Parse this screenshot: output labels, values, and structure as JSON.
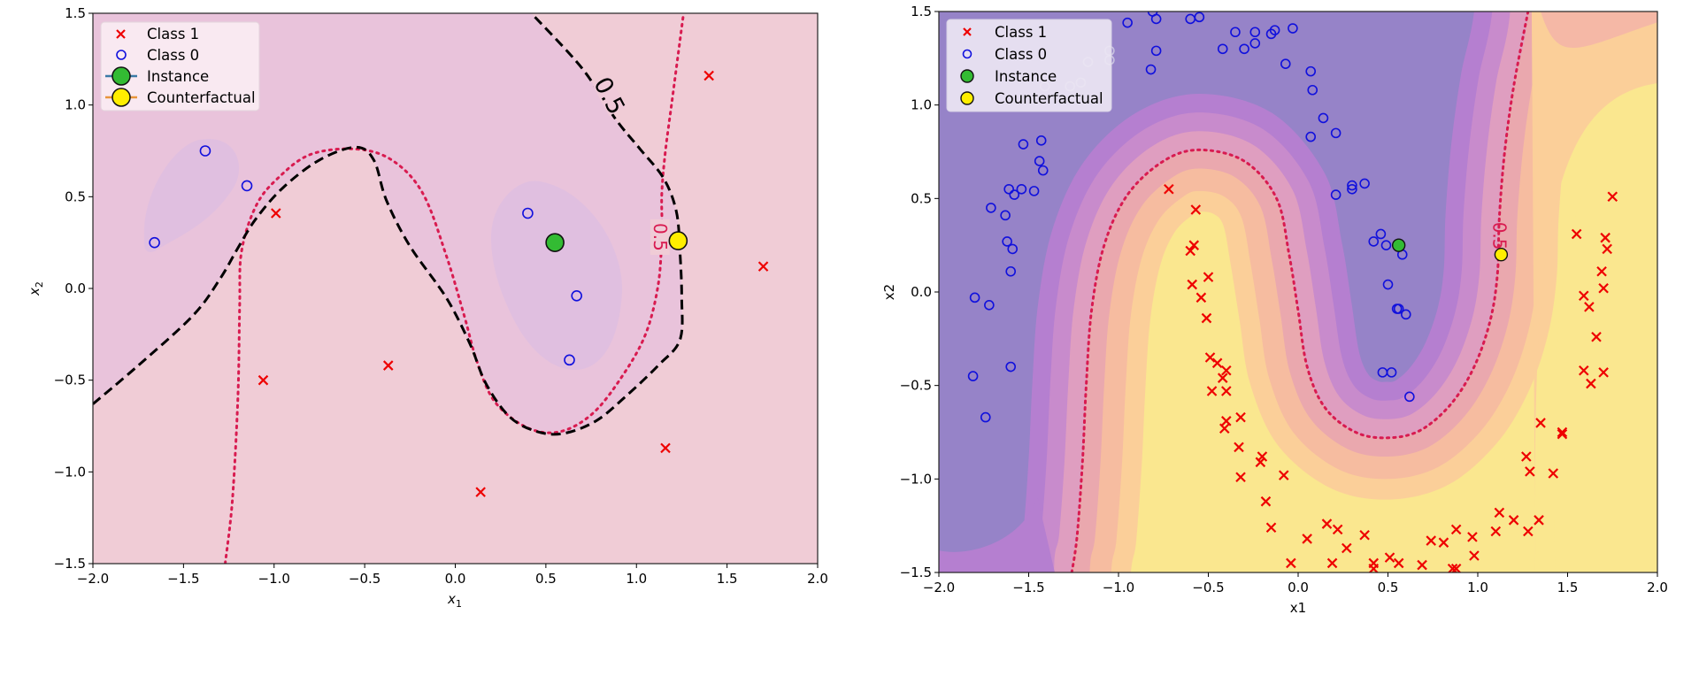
{
  "colors": {
    "class1": "#ee0000",
    "class0": "#1010dd",
    "instance": "#33bb33",
    "counterfactual": "#ffee00",
    "boundary_true": "#d81b50",
    "boundary_model": "#000000"
  },
  "chart_data": [
    {
      "type": "scatter",
      "title": "",
      "xlabel": "x1",
      "ylabel": "x2",
      "xlabel_style": "math-subscript",
      "xlim": [
        -2.0,
        2.0
      ],
      "ylim": [
        -1.5,
        1.5
      ],
      "xticks": [
        "−2.0",
        "−1.5",
        "−1.0",
        "−0.5",
        "0.0",
        "0.5",
        "1.0",
        "1.5",
        "2.0"
      ],
      "yticks": [
        "−1.5",
        "−1.0",
        "−0.5",
        "0.0",
        "0.5",
        "1.0",
        "1.5"
      ],
      "legend_position": "top-left",
      "legend": [
        "Class 1",
        "Class 0",
        "Instance",
        "Counterfactual"
      ],
      "series": [
        {
          "name": "Class 1",
          "marker": "x",
          "points": [
            [
              1.4,
              1.16
            ],
            [
              -0.99,
              0.41
            ],
            [
              1.7,
              0.12
            ],
            [
              -1.06,
              -0.5
            ],
            [
              -0.37,
              -0.42
            ],
            [
              1.16,
              -0.87
            ],
            [
              0.14,
              -1.11
            ]
          ]
        },
        {
          "name": "Class 0",
          "marker": "o",
          "points": [
            [
              -1.38,
              0.75
            ],
            [
              -1.15,
              0.56
            ],
            [
              -1.66,
              0.25
            ],
            [
              0.4,
              0.41
            ],
            [
              0.67,
              -0.04
            ],
            [
              0.63,
              -0.39
            ]
          ]
        },
        {
          "name": "Instance",
          "marker": "big-circle",
          "points": [
            [
              0.55,
              0.25
            ]
          ]
        },
        {
          "name": "Counterfactual",
          "marker": "big-circle",
          "points": [
            [
              1.23,
              0.26
            ]
          ]
        }
      ],
      "contours": [
        {
          "name": "model-boundary",
          "level_label": "0.5",
          "style": "dashed",
          "points": [
            [
              -2.0,
              -0.63
            ],
            [
              -1.75,
              -0.42
            ],
            [
              -1.45,
              -0.15
            ],
            [
              -1.3,
              0.05
            ],
            [
              -1.2,
              0.22
            ],
            [
              -1.1,
              0.38
            ],
            [
              -0.95,
              0.55
            ],
            [
              -0.75,
              0.7
            ],
            [
              -0.55,
              0.77
            ],
            [
              -0.45,
              0.7
            ],
            [
              -0.38,
              0.48
            ],
            [
              -0.25,
              0.23
            ],
            [
              -0.05,
              -0.05
            ],
            [
              0.08,
              -0.3
            ],
            [
              0.17,
              -0.52
            ],
            [
              0.3,
              -0.7
            ],
            [
              0.45,
              -0.78
            ],
            [
              0.6,
              -0.79
            ],
            [
              0.78,
              -0.72
            ],
            [
              0.95,
              -0.58
            ],
            [
              1.12,
              -0.42
            ],
            [
              1.24,
              -0.28
            ],
            [
              1.25,
              -0.05
            ],
            [
              1.24,
              0.2
            ],
            [
              1.22,
              0.42
            ],
            [
              1.15,
              0.6
            ],
            [
              1.02,
              0.76
            ],
            [
              0.88,
              0.93
            ],
            [
              0.7,
              1.2
            ],
            [
              0.42,
              1.5
            ]
          ],
          "label_at": [
            0.85,
            1.05
          ]
        },
        {
          "name": "true-boundary",
          "level_label": "0.5",
          "style": "dotted",
          "points": [
            [
              -1.27,
              -1.5
            ],
            [
              -1.23,
              -1.15
            ],
            [
              -1.2,
              -0.6
            ],
            [
              -1.19,
              -0.1
            ],
            [
              -1.18,
              0.2
            ],
            [
              -1.1,
              0.45
            ],
            [
              -0.98,
              0.6
            ],
            [
              -0.8,
              0.73
            ],
            [
              -0.55,
              0.76
            ],
            [
              -0.35,
              0.7
            ],
            [
              -0.18,
              0.52
            ],
            [
              -0.05,
              0.18
            ],
            [
              0.05,
              -0.15
            ],
            [
              0.12,
              -0.4
            ],
            [
              0.22,
              -0.62
            ],
            [
              0.4,
              -0.76
            ],
            [
              0.58,
              -0.78
            ],
            [
              0.76,
              -0.68
            ],
            [
              0.92,
              -0.48
            ],
            [
              1.05,
              -0.25
            ],
            [
              1.12,
              0.02
            ],
            [
              1.14,
              0.3
            ],
            [
              1.14,
              0.52
            ],
            [
              1.16,
              0.75
            ],
            [
              1.2,
              1.05
            ],
            [
              1.26,
              1.5
            ]
          ],
          "label_at": [
            1.13,
            0.28
          ]
        }
      ]
    },
    {
      "type": "scatter",
      "title": "",
      "xlabel": "x1",
      "ylabel": "x2",
      "xlim": [
        -2.0,
        2.0
      ],
      "ylim": [
        -1.5,
        1.5
      ],
      "xticks": [
        "−2.0",
        "−1.5",
        "−1.0",
        "−0.5",
        "0.0",
        "0.5",
        "1.0",
        "1.5",
        "2.0"
      ],
      "yticks": [
        "−1.5",
        "−1.0",
        "−0.5",
        "0.0",
        "0.5",
        "1.0",
        "1.5"
      ],
      "legend_position": "top-left",
      "legend": [
        "Class 1",
        "Class 0",
        "Instance",
        "Counterfactual"
      ],
      "series": [
        {
          "name": "Class 1",
          "marker": "x",
          "points": [
            [
              -0.72,
              0.55
            ],
            [
              -0.57,
              0.44
            ],
            [
              -0.58,
              0.25
            ],
            [
              -0.6,
              0.22
            ],
            [
              -0.59,
              0.04
            ],
            [
              -0.5,
              0.08
            ],
            [
              -0.54,
              -0.03
            ],
            [
              -0.51,
              -0.14
            ],
            [
              -0.49,
              -0.35
            ],
            [
              -0.45,
              -0.38
            ],
            [
              -0.4,
              -0.42
            ],
            [
              -0.42,
              -0.46
            ],
            [
              -0.48,
              -0.53
            ],
            [
              -0.4,
              -0.53
            ],
            [
              -0.4,
              -0.69
            ],
            [
              -0.41,
              -0.73
            ],
            [
              -0.32,
              -0.67
            ],
            [
              -0.33,
              -0.83
            ],
            [
              -0.2,
              -0.88
            ],
            [
              -0.21,
              -0.91
            ],
            [
              -0.32,
              -0.99
            ],
            [
              -0.08,
              -0.98
            ],
            [
              -0.18,
              -1.12
            ],
            [
              -0.15,
              -1.26
            ],
            [
              -0.04,
              -1.45
            ],
            [
              0.05,
              -1.32
            ],
            [
              0.16,
              -1.24
            ],
            [
              0.22,
              -1.27
            ],
            [
              0.19,
              -1.45
            ],
            [
              0.27,
              -1.37
            ],
            [
              0.37,
              -1.3
            ],
            [
              0.42,
              -1.45
            ],
            [
              0.42,
              -1.48
            ],
            [
              0.51,
              -1.42
            ],
            [
              0.56,
              -1.45
            ],
            [
              0.69,
              -1.46
            ],
            [
              0.74,
              -1.33
            ],
            [
              0.81,
              -1.34
            ],
            [
              0.88,
              -1.27
            ],
            [
              0.86,
              -1.48
            ],
            [
              0.88,
              -1.48
            ],
            [
              0.97,
              -1.31
            ],
            [
              0.98,
              -1.41
            ],
            [
              1.1,
              -1.28
            ],
            [
              1.12,
              -1.18
            ],
            [
              1.2,
              -1.22
            ],
            [
              1.28,
              -1.28
            ],
            [
              1.34,
              -1.22
            ],
            [
              1.27,
              -0.88
            ],
            [
              1.29,
              -0.96
            ],
            [
              1.35,
              -0.7
            ],
            [
              1.42,
              -0.97
            ],
            [
              1.47,
              -0.75
            ],
            [
              1.47,
              -0.76
            ],
            [
              1.55,
              0.31
            ],
            [
              1.59,
              -0.02
            ],
            [
              1.62,
              -0.08
            ],
            [
              1.66,
              -0.24
            ],
            [
              1.59,
              -0.42
            ],
            [
              1.63,
              -0.49
            ],
            [
              1.7,
              -0.43
            ],
            [
              1.69,
              0.11
            ],
            [
              1.71,
              0.29
            ],
            [
              1.72,
              0.23
            ],
            [
              1.7,
              0.02
            ],
            [
              1.75,
              0.51
            ]
          ]
        },
        {
          "name": "Class 0",
          "marker": "o",
          "points": [
            [
              -1.8,
              -0.03
            ],
            [
              -1.72,
              -0.07
            ],
            [
              -1.81,
              -0.45
            ],
            [
              -1.6,
              -0.4
            ],
            [
              -1.74,
              -0.67
            ],
            [
              -1.71,
              0.45
            ],
            [
              -1.63,
              0.41
            ],
            [
              -1.62,
              0.27
            ],
            [
              -1.59,
              0.23
            ],
            [
              -1.6,
              0.11
            ],
            [
              -1.61,
              0.55
            ],
            [
              -1.58,
              0.52
            ],
            [
              -1.54,
              0.55
            ],
            [
              -1.47,
              0.54
            ],
            [
              -1.44,
              0.7
            ],
            [
              -1.42,
              0.65
            ],
            [
              -1.43,
              0.81
            ],
            [
              -1.53,
              0.79
            ],
            [
              -0.95,
              1.44
            ],
            [
              -0.81,
              1.5
            ],
            [
              -0.79,
              1.46
            ],
            [
              -0.79,
              1.29
            ],
            [
              -0.82,
              1.19
            ],
            [
              -0.6,
              1.46
            ],
            [
              -0.55,
              1.47
            ],
            [
              -0.42,
              1.3
            ],
            [
              -0.3,
              1.3
            ],
            [
              -0.35,
              1.39
            ],
            [
              -0.24,
              1.39
            ],
            [
              -0.24,
              1.33
            ],
            [
              -0.15,
              1.38
            ],
            [
              -0.13,
              1.4
            ],
            [
              -0.03,
              1.41
            ],
            [
              -0.07,
              1.22
            ],
            [
              0.07,
              1.18
            ],
            [
              0.08,
              1.08
            ],
            [
              0.14,
              0.93
            ],
            [
              0.07,
              0.83
            ],
            [
              0.21,
              0.85
            ],
            [
              0.21,
              0.52
            ],
            [
              0.3,
              0.55
            ],
            [
              0.3,
              0.57
            ],
            [
              0.37,
              0.58
            ],
            [
              0.42,
              0.27
            ],
            [
              0.46,
              0.31
            ],
            [
              0.49,
              0.25
            ],
            [
              0.58,
              0.2
            ],
            [
              0.5,
              0.04
            ],
            [
              0.55,
              -0.09
            ],
            [
              0.56,
              -0.09
            ],
            [
              0.6,
              -0.12
            ],
            [
              0.47,
              -0.43
            ],
            [
              0.52,
              -0.43
            ],
            [
              0.62,
              -0.56
            ]
          ]
        },
        {
          "name": "Class 0 (faded, behind legend)",
          "marker": "o-faded",
          "points": [
            [
              -1.05,
              1.29
            ],
            [
              -1.05,
              1.24
            ],
            [
              -1.17,
              1.23
            ],
            [
              -1.21,
              1.12
            ],
            [
              -1.27,
              1.1
            ],
            [
              -1.41,
              1.1
            ]
          ]
        },
        {
          "name": "Instance",
          "marker": "big-circle",
          "points": [
            [
              0.56,
              0.25
            ]
          ]
        },
        {
          "name": "Counterfactual",
          "marker": "big-circle",
          "points": [
            [
              1.13,
              0.2
            ]
          ]
        }
      ],
      "contours": [
        {
          "name": "true-boundary",
          "level_label": "0.5",
          "style": "dotted",
          "points": [
            [
              -1.26,
              -1.5
            ],
            [
              -1.23,
              -1.3
            ],
            [
              -1.2,
              -0.9
            ],
            [
              -1.18,
              -0.5
            ],
            [
              -1.15,
              -0.1
            ],
            [
              -1.08,
              0.25
            ],
            [
              -0.95,
              0.52
            ],
            [
              -0.75,
              0.7
            ],
            [
              -0.55,
              0.76
            ],
            [
              -0.3,
              0.7
            ],
            [
              -0.12,
              0.5
            ],
            [
              -0.05,
              0.2
            ],
            [
              0.0,
              -0.1
            ],
            [
              0.05,
              -0.4
            ],
            [
              0.15,
              -0.62
            ],
            [
              0.32,
              -0.75
            ],
            [
              0.5,
              -0.78
            ],
            [
              0.68,
              -0.74
            ],
            [
              0.85,
              -0.6
            ],
            [
              0.98,
              -0.4
            ],
            [
              1.07,
              -0.15
            ],
            [
              1.11,
              0.1
            ],
            [
              1.12,
              0.4
            ],
            [
              1.15,
              0.75
            ],
            [
              1.2,
              1.1
            ],
            [
              1.28,
              1.5
            ]
          ],
          "label_at": [
            1.12,
            0.3
          ]
        }
      ]
    }
  ]
}
